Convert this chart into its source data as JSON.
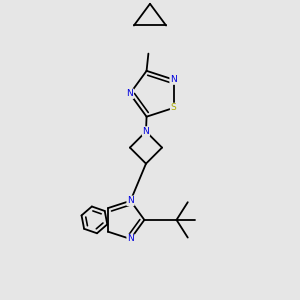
{
  "bg_color": "#e6e6e6",
  "bond_color": "#000000",
  "N_color": "#0000dd",
  "S_color": "#aaaa00",
  "font_size_atom": 6.5,
  "line_width": 1.3,
  "figsize": [
    3.0,
    3.0
  ],
  "dpi": 100,
  "xlim": [
    -0.8,
    1.6
  ],
  "ylim": [
    -1.5,
    2.2
  ]
}
